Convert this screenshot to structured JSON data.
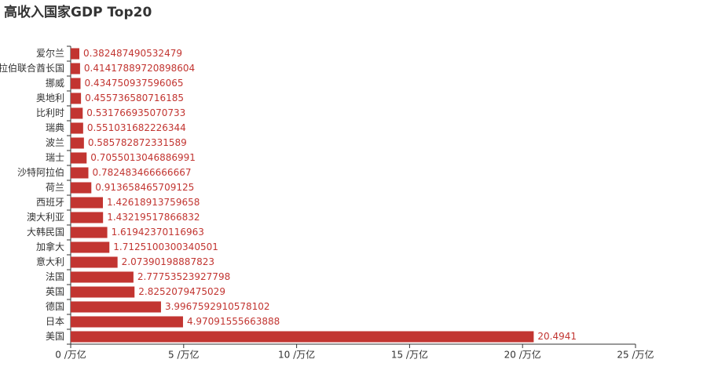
{
  "chart_data": {
    "type": "hbar",
    "title": "高收入国家GDP Top20",
    "categories": [
      "美国",
      "日本",
      "德国",
      "英国",
      "法国",
      "意大利",
      "加拿大",
      "大韩民国",
      "澳大利亚",
      "西班牙",
      "荷兰",
      "沙特阿拉伯",
      "瑞士",
      "波兰",
      "瑞典",
      "比利时",
      "奥地利",
      "挪威",
      "阿拉伯联合酋长国",
      "爱尔兰"
    ],
    "values": [
      20.4941,
      4.97091555663888,
      3.9967592910578102,
      2.8252079475029,
      2.77753523927798,
      2.07390198887823,
      1.7125100300340501,
      1.61942370116963,
      1.43219517866832,
      1.42618913759658,
      0.913658465709125,
      0.782483466666667,
      0.7055013046886991,
      0.585782872331589,
      0.551031682226344,
      0.531766935070733,
      0.455736580716185,
      0.434750937596065,
      0.41417889720898604,
      0.382487490532479
    ],
    "value_labels": [
      "20.4941",
      "4.97091555663888",
      "3.9967592910578102",
      "2.8252079475029",
      "2.77753523927798",
      "2.07390198887823",
      "1.7125100300340501",
      "1.61942370116963",
      "1.43219517866832",
      "1.42618913759658",
      "0.913658465709125",
      "0.782483466666667",
      "0.7055013046886991",
      "0.585782872331589",
      "0.551031682226344",
      "0.531766935070733",
      "0.455736580716185",
      "0.434750937596065",
      "0.41417889720898604",
      "0.382487490532479"
    ],
    "color": "#c23531",
    "xlim": [
      0,
      25
    ],
    "xticks": [
      {
        "value": 0,
        "label": "0 /万亿"
      },
      {
        "value": 5,
        "label": "5 /万亿"
      },
      {
        "value": 10,
        "label": "10 /万亿"
      },
      {
        "value": 15,
        "label": "15 /万亿"
      },
      {
        "value": 20,
        "label": "20 /万亿"
      },
      {
        "value": 25,
        "label": "25 /万亿"
      }
    ]
  }
}
